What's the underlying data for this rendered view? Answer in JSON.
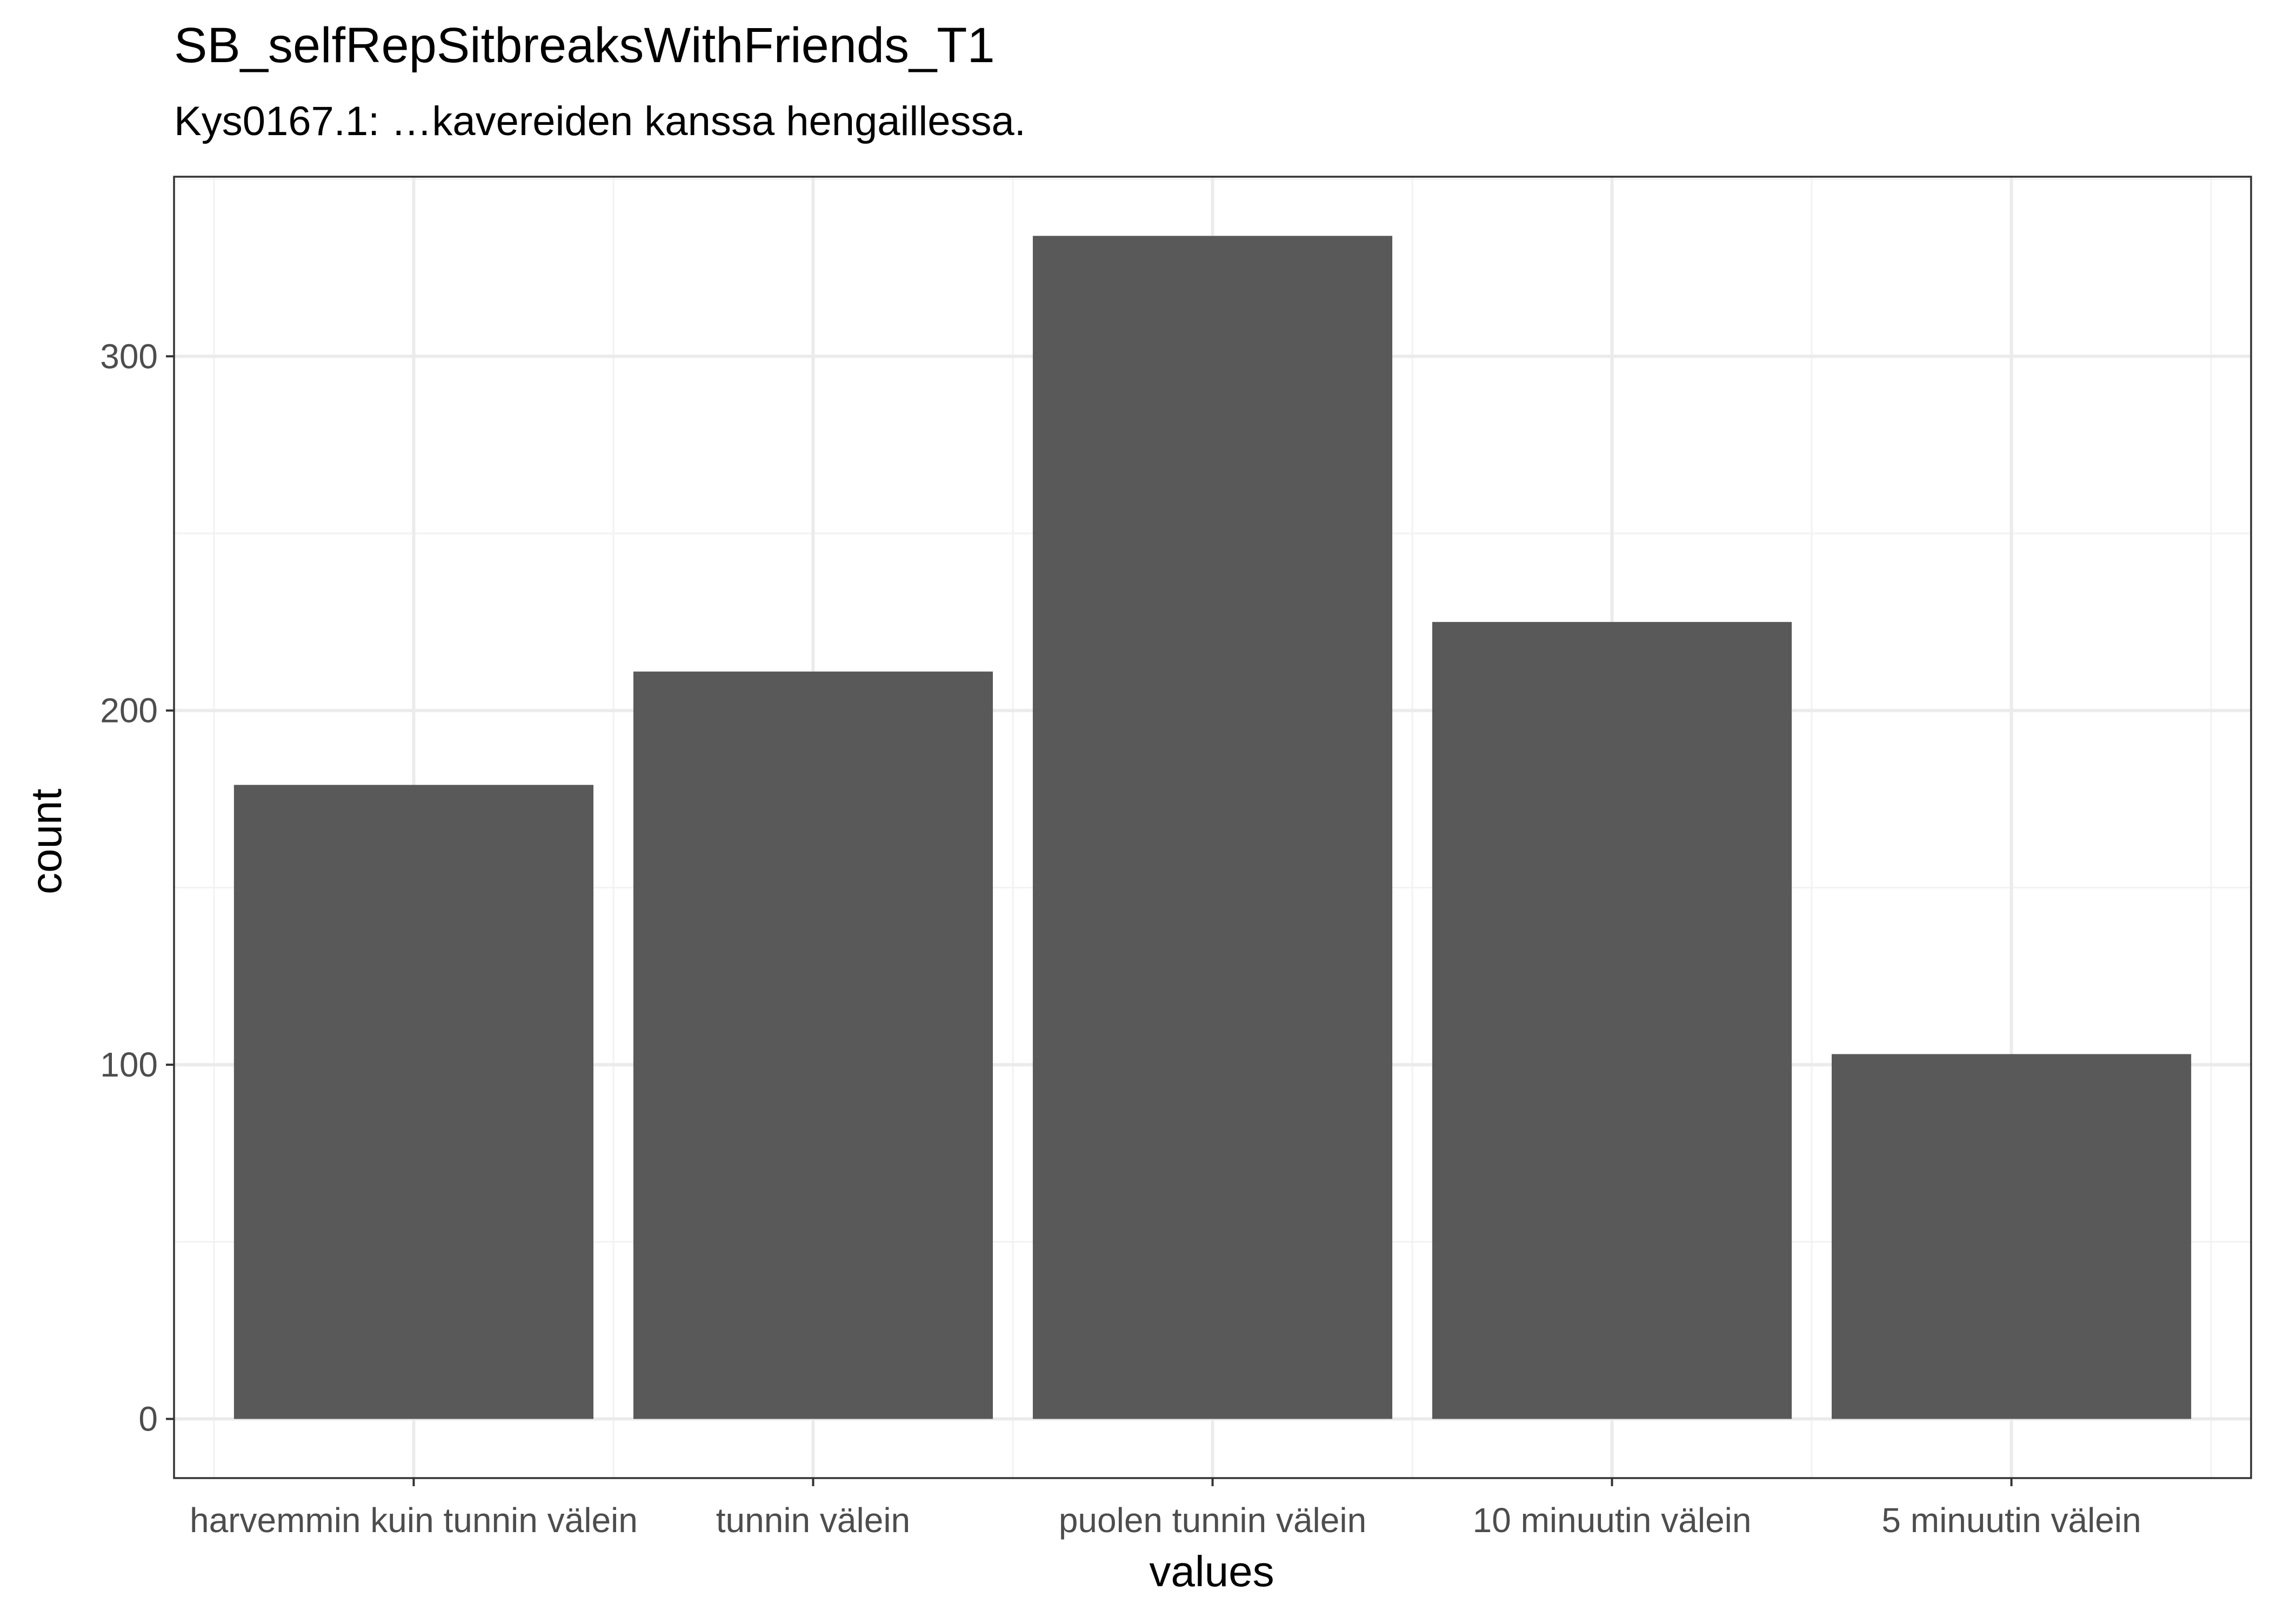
{
  "chart_data": {
    "type": "bar",
    "title": "SB_selfRepSitbreaksWithFriends_T1",
    "subtitle": "Kys0167.1: …kavereiden kanssa hengaillessa.",
    "xlabel": "values",
    "ylabel": "count",
    "categories": [
      "harvemmin kuin tunnin välein",
      "tunnin välein",
      "puolen tunnin välein",
      "10 minuutin välein",
      "5 minuutin välein"
    ],
    "values": [
      179,
      211,
      334,
      225,
      103
    ],
    "ylim": [
      -16.7,
      350.7
    ],
    "yticks": [
      0,
      100,
      200,
      300
    ],
    "ytick_labels": [
      "0",
      "100",
      "200",
      "300"
    ],
    "grid": true,
    "legend": "none",
    "colors": {
      "bar": "#595959",
      "grid_major": "#ebebeb",
      "grid_minor": "#f2f2f2",
      "panel_border": "#333333",
      "tick_label": "#4d4d4d",
      "text": "#000000"
    }
  }
}
